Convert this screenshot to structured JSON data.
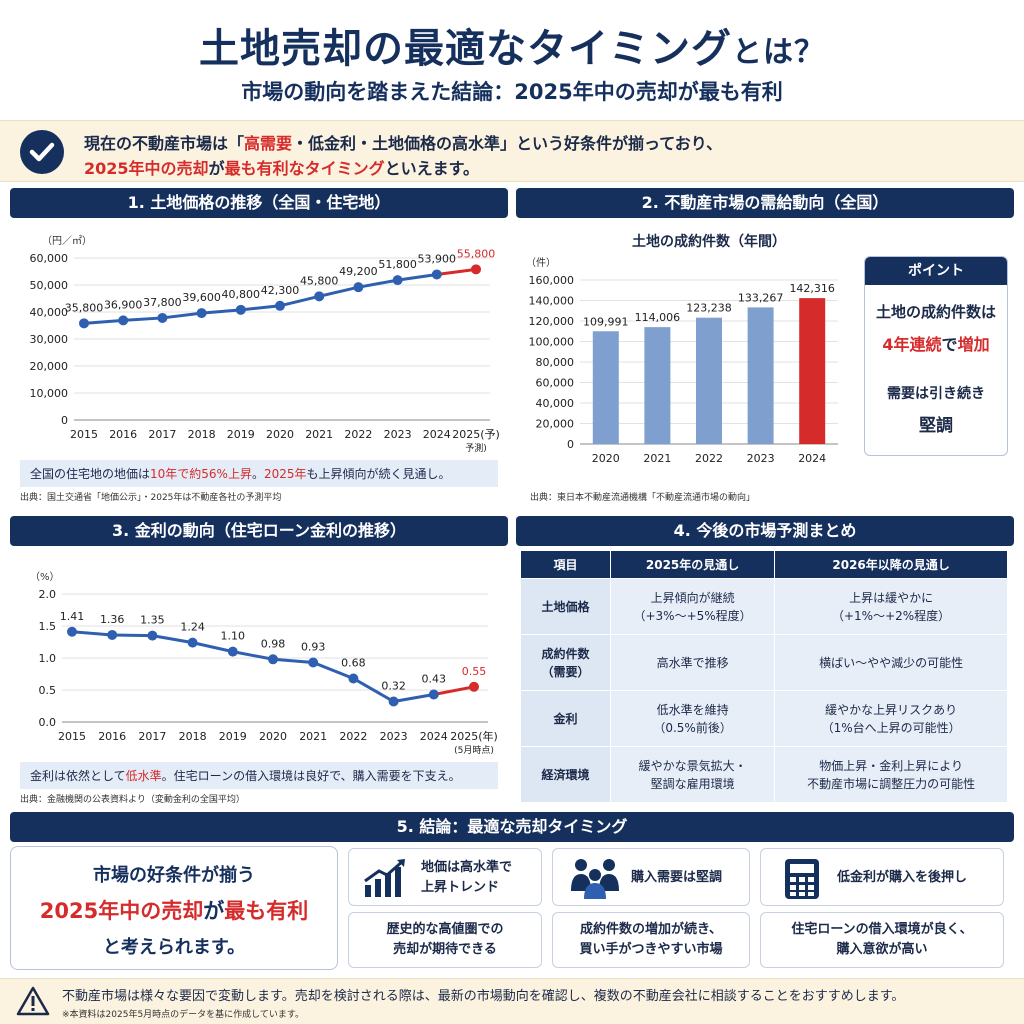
{
  "header": {
    "title": "土地売却の最適なタイミング",
    "title_suffix": "とは？",
    "subtitle": "市場の動向を踏まえた結論：2025年中の売却が最も有利"
  },
  "banner": {
    "line1_a": "現在の不動産市場は「",
    "line1_hl": "高需要",
    "line1_b": "・低金利・土地価格の高水準」という好条件が揃っており、",
    "line2_hl1": "2025年中の売却",
    "line2_a": "が",
    "line2_hl2": "最も有利なタイミング",
    "line2_b": "といえます。"
  },
  "panel1": {
    "heading": "1. 土地価格の推移（全国・住宅地）",
    "note_a": "全国の住宅地の地価は",
    "note_hl1": "10年で約56%上昇",
    "note_b": "。",
    "note_hl2": "2025年",
    "note_c": "も上昇傾向が続く見通し。",
    "source": "出典：国土交通省「地価公示」・2025年は不動産各社の予測平均"
  },
  "panel2": {
    "heading": "2. 不動産市場の需給動向（全国）",
    "source": "出典：東日本不動産流通機構「不動産流通市場の動向」",
    "point": {
      "title": "ポイント",
      "line1": "土地の成約件数は",
      "line2_hl1": "4年連続",
      "line2_a": "で",
      "line2_hl2": "増加",
      "line3": "需要は引き続き",
      "line4": "堅調"
    }
  },
  "panel3": {
    "heading": "3. 金利の動向（住宅ローン金利の推移）",
    "note_a": "金利は依然として",
    "note_hl": "低水準",
    "note_b": "。住宅ローンの借入環境は良好で、購入需要を下支え。",
    "source": "出典：金融機関の公表資料より（変動金利の全国平均）"
  },
  "panel4": {
    "heading": "4. 今後の市場予測まとめ",
    "columns": [
      "項目",
      "2025年の見通し",
      "2026年以降の見通し"
    ],
    "rows": [
      {
        "item": [
          "土地価格"
        ],
        "y2025": [
          "上昇傾向が継続",
          "（+3%〜+5%程度）"
        ],
        "y2026": [
          "上昇は緩やかに",
          "（+1%〜+2%程度）"
        ]
      },
      {
        "item": [
          "成約件数",
          "（需要）"
        ],
        "y2025": [
          "高水準で推移"
        ],
        "y2026": [
          "横ばい〜やや減少の可能性"
        ]
      },
      {
        "item": [
          "金利"
        ],
        "y2025": [
          "低水準を維持",
          "（0.5%前後）"
        ],
        "y2026": [
          "緩やかな上昇リスクあり",
          "（1%台へ上昇の可能性）"
        ]
      },
      {
        "item": [
          "経済環境"
        ],
        "y2025": [
          "緩やかな景気拡大・",
          "堅調な雇用環境"
        ],
        "y2026": [
          "物価上昇・金利上昇により",
          "不動産市場に調整圧力の可能性"
        ]
      }
    ]
  },
  "panel5": {
    "heading": "5. 結論：最適な売却タイミング",
    "main_line1": "市場の好条件が揃う",
    "main_hl1": "2025年中の売却",
    "main_a": "が",
    "main_hl2": "最も有利",
    "main_line3": "と考えられます。",
    "cards": [
      {
        "title": [
          "地価は高水準で",
          "上昇トレンド"
        ],
        "desc": [
          "歴史的な高値圏での",
          "売却が期待できる"
        ],
        "icon": "chart-up-icon"
      },
      {
        "title": [
          "購入需要は堅調"
        ],
        "desc": [
          "成約件数の増加が続き、",
          "買い手がつきやすい市場"
        ],
        "icon": "people-icon"
      },
      {
        "title": [
          "低金利が購入を後押し"
        ],
        "desc": [
          "住宅ローンの借入環境が良く、",
          "購入意欲が高い"
        ],
        "icon": "calculator-icon"
      }
    ]
  },
  "footer": {
    "text": "不動産市場は様々な要因で変動します。売却を検討される際は、最新の市場動向を確認し、複数の不動産会社に相談することをおすすめします。",
    "note": "※本資料は2025年5月時点のデータを基に作成しています。"
  },
  "chart_data": [
    {
      "type": "line",
      "title": "",
      "ylabel": "（円／㎡）",
      "x": [
        "2015",
        "2016",
        "2017",
        "2018",
        "2019",
        "2020",
        "2021",
        "2022",
        "2023",
        "2024",
        "2025"
      ],
      "x_last_suffix": "(予)",
      "x_last_note": "予測)",
      "values": [
        35800,
        36900,
        37800,
        39600,
        40800,
        42300,
        45800,
        49200,
        51800,
        53900,
        55800
      ],
      "labels": [
        "35,800",
        "36,900",
        "37,800",
        "39,600",
        "40,800",
        "42,300",
        "45,800",
        "49,200",
        "51,800",
        "53,900",
        "55,800"
      ],
      "yticks": [
        "0",
        "10,000",
        "20,000",
        "30,000",
        "40,000",
        "50,000",
        "60,000"
      ],
      "ylim": [
        0,
        60000
      ],
      "highlight_last": true,
      "colors": {
        "line": "#2f5fb0",
        "highlight": "#d62b2b"
      }
    },
    {
      "type": "bar",
      "title": "土地の成約件数（年間）",
      "ylabel": "（件）",
      "categories": [
        "2020",
        "2021",
        "2022",
        "2023",
        "2024"
      ],
      "values": [
        109991,
        114006,
        123238,
        133267,
        142316
      ],
      "labels": [
        "109,991",
        "114,006",
        "123,238",
        "133,267",
        "142,316"
      ],
      "yticks": [
        "0",
        "20,000",
        "40,000",
        "60,000",
        "80,000",
        "100,000",
        "120,000",
        "140,000",
        "160,000"
      ],
      "ylim": [
        0,
        160000
      ],
      "highlight_last": true,
      "colors": {
        "bar": "#7f9fcf",
        "highlight": "#d62b2b"
      }
    },
    {
      "type": "line",
      "title": "",
      "ylabel": "（%）",
      "x": [
        "2015",
        "2016",
        "2017",
        "2018",
        "2019",
        "2020",
        "2021",
        "2022",
        "2023",
        "2024",
        "2025"
      ],
      "x_last_suffix": "(年)",
      "x_last_note": "(5月時点)",
      "values": [
        1.41,
        1.36,
        1.35,
        1.24,
        1.1,
        0.98,
        0.93,
        0.68,
        0.32,
        0.43,
        0.55
      ],
      "labels": [
        "1.41",
        "1.36",
        "1.35",
        "1.24",
        "1.10",
        "0.98",
        "0.93",
        "0.68",
        "0.32",
        "0.43",
        "0.55"
      ],
      "yticks": [
        "0.0",
        "0.5",
        "1.0",
        "1.5",
        "2.0"
      ],
      "ylim": [
        0,
        2.0
      ],
      "highlight_last": true,
      "colors": {
        "line": "#2f5fb0",
        "highlight": "#d62b2b"
      }
    }
  ]
}
